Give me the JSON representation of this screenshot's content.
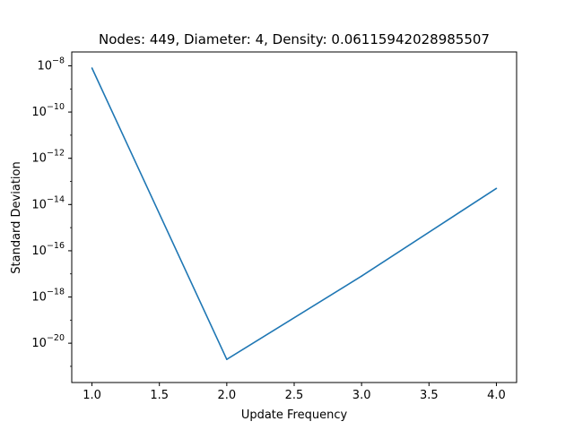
{
  "chart_data": {
    "type": "line",
    "title": "Nodes: 449, Diameter: 4, Density: 0.06115942028985507",
    "xlabel": "Update Frequency",
    "ylabel": "Standard Deviation",
    "yscale": "log",
    "xlim": [
      0.85,
      4.15
    ],
    "ylim_exponent": [
      -21.7,
      -7.4
    ],
    "grid": false,
    "legend": "none",
    "series": [
      {
        "x": [
          1.0,
          2.0,
          3.0,
          4.0
        ],
        "y": [
          8e-09,
          2e-21,
          8e-18,
          5e-14
        ],
        "color": "#1f77b4"
      }
    ],
    "x_ticks": [
      1.0,
      1.5,
      2.0,
      2.5,
      3.0,
      3.5,
      4.0
    ],
    "x_tick_labels": [
      "1.0",
      "1.5",
      "2.0",
      "2.5",
      "3.0",
      "3.5",
      "4.0"
    ],
    "y_tick_exponents": [
      -8,
      -10,
      -12,
      -14,
      -16,
      -18,
      -20
    ],
    "y_tick_base": "10"
  }
}
